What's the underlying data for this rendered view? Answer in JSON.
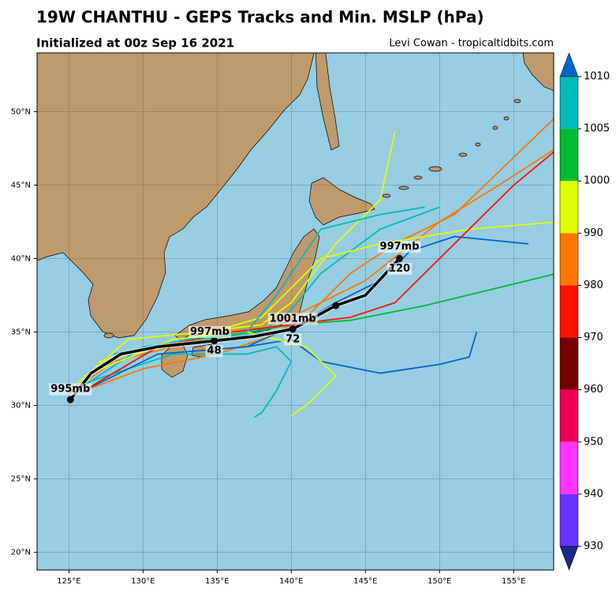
{
  "chart_data": {
    "type": "map",
    "title": "19W CHANTHU - GEPS Tracks and Min. MSLP (hPa)",
    "subtitle": "Initialized at 00z Sep 16 2021",
    "credit": "Levi Cowan - tropicaltidbits.com",
    "xlim": [
      122.85,
      157.7
    ],
    "ylim": [
      18.8,
      54
    ],
    "xticks": [
      {
        "value": 125,
        "label": "125°E"
      },
      {
        "value": 130,
        "label": "130°E"
      },
      {
        "value": 135,
        "label": "135°E"
      },
      {
        "value": 140,
        "label": "140°E"
      },
      {
        "value": 145,
        "label": "145°E"
      },
      {
        "value": 150,
        "label": "150°E"
      },
      {
        "value": 155,
        "label": "155°E"
      }
    ],
    "yticks": [
      {
        "value": 20,
        "label": "20°N"
      },
      {
        "value": 25,
        "label": "25°N"
      },
      {
        "value": 30,
        "label": "30°N"
      },
      {
        "value": 35,
        "label": "35°N"
      },
      {
        "value": 40,
        "label": "40°N"
      },
      {
        "value": 45,
        "label": "45°N"
      },
      {
        "value": 50,
        "label": "50°N"
      }
    ],
    "grid": true,
    "tracks": [
      {
        "color": "#ff7700",
        "lon": [
          125,
          128,
          132,
          136,
          140,
          145,
          150,
          154,
          158
        ],
        "lat": [
          30.8,
          33,
          34,
          35.2,
          36,
          38.5,
          42.5,
          45,
          47.6
        ]
      },
      {
        "color": "#ff7700",
        "lon": [
          126,
          130,
          135,
          138,
          141,
          144,
          147,
          151,
          158
        ],
        "lat": [
          31,
          32.5,
          33.5,
          34.5,
          36,
          39,
          41,
          43,
          49.8
        ]
      },
      {
        "color": "#ddff00",
        "lon": [
          125,
          129,
          134,
          138,
          140,
          143,
          146,
          147
        ],
        "lat": [
          31,
          34.5,
          35,
          35.5,
          37,
          41,
          44,
          48.7
        ]
      },
      {
        "color": "#00bbbb",
        "lon": [
          125.5,
          130,
          135,
          138,
          140,
          142,
          146,
          150
        ],
        "lat": [
          31,
          34,
          34.5,
          35,
          36.5,
          39,
          42,
          43.5
        ]
      },
      {
        "color": "#00bb33",
        "lon": [
          126,
          131,
          136,
          140,
          144,
          149,
          158
        ],
        "lat": [
          31,
          34,
          34.8,
          35.5,
          35.8,
          36.8,
          39
        ]
      },
      {
        "color": "#00bbbb",
        "lon": [
          126,
          132,
          137,
          139,
          140,
          139,
          138,
          137.5
        ],
        "lat": [
          31.5,
          33.5,
          33.5,
          34,
          33,
          31,
          29.5,
          29.2
        ]
      },
      {
        "color": "#0066cc",
        "lon": [
          126,
          131,
          137,
          140,
          142,
          146,
          150,
          152,
          152.5
        ],
        "lat": [
          31,
          33.5,
          34,
          34.5,
          33,
          32.2,
          32.8,
          33.3,
          35
        ]
      },
      {
        "color": "#ddff00",
        "lon": [
          126,
          132,
          137,
          141,
          143,
          141,
          140
        ],
        "lat": [
          32,
          34.5,
          35,
          34,
          32,
          30,
          29.3
        ]
      },
      {
        "color": "#0066cc",
        "lon": [
          137,
          141,
          143,
          146,
          148,
          151,
          156
        ],
        "lat": [
          34,
          35.8,
          37,
          38.5,
          40.5,
          41.5,
          41
        ]
      },
      {
        "color": "#ddff00",
        "lon": [
          127,
          133,
          138,
          142,
          146,
          152,
          158
        ],
        "lat": [
          33,
          34.5,
          36,
          40,
          41,
          42,
          42.5
        ]
      },
      {
        "color": "#ff1100",
        "lon": [
          126,
          131,
          136,
          140,
          144,
          147,
          151,
          155,
          158
        ],
        "lat": [
          31,
          34,
          35,
          35.5,
          36,
          37,
          41,
          45,
          47.5
        ]
      },
      {
        "color": "#00bbbb",
        "lon": [
          128,
          133,
          137,
          139,
          142,
          146,
          149
        ],
        "lat": [
          33.5,
          34.5,
          35,
          37.5,
          42,
          43,
          43.5
        ]
      }
    ],
    "mean_track": {
      "lon": [
        125.1,
        126.5,
        128.5,
        131,
        134.8,
        137.5,
        140.1,
        143,
        145,
        147.3
      ],
      "lat": [
        30.4,
        32.2,
        33.5,
        34,
        34.4,
        34.7,
        35.2,
        36.8,
        37.5,
        40
      ]
    },
    "annotations": [
      {
        "text": "995mb",
        "lon": 125.1,
        "lat": 31.1
      },
      {
        "text": "997mb",
        "lon": 134.5,
        "lat": 35.0
      },
      {
        "text": "48",
        "lon": 134.8,
        "lat": 33.7
      },
      {
        "text": "1001mb",
        "lon": 140.1,
        "lat": 35.9
      },
      {
        "text": "72",
        "lon": 140.1,
        "lat": 34.5
      },
      {
        "text": "997mb",
        "lon": 147.3,
        "lat": 40.8
      },
      {
        "text": "120",
        "lon": 147.3,
        "lat": 39.3
      }
    ],
    "colorbar": {
      "ticks": [
        930,
        940,
        950,
        960,
        970,
        980,
        990,
        1000,
        1005,
        1010
      ],
      "colors": [
        "#6633ff",
        "#ff33ff",
        "#ee0055",
        "#770000",
        "#ff1100",
        "#ff7700",
        "#ddff00",
        "#00bb33",
        "#00bbbb"
      ],
      "under_color": "#1a2a8a",
      "over_color": "#0066cc"
    }
  }
}
